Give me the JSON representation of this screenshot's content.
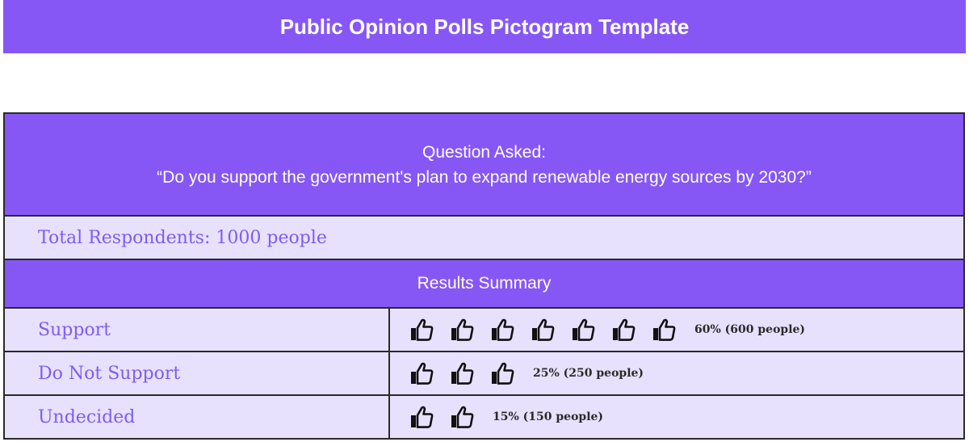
{
  "header": {
    "title": "Public Opinion Polls Pictogram Template"
  },
  "question": {
    "label": "Question Asked:",
    "text": "“Do you support the government's plan to expand renewable energy sources by 2030?”"
  },
  "respondents": {
    "text": "Total Respondents: 1000 people"
  },
  "summary": {
    "title": "Results Summary"
  },
  "results": [
    {
      "label": "Support",
      "icon_count": 7,
      "value": "60% (600 people)"
    },
    {
      "label": "Do Not Support",
      "icon_count": 3,
      "value": "25% (250 people)"
    },
    {
      "label": "Undecided",
      "icon_count": 2,
      "value": "15% (150 people)"
    }
  ],
  "icons": {
    "result_icon": "thumbs-up-icon"
  },
  "colors": {
    "accent": "#8657f5",
    "row_background": "#e7e1fd",
    "label_text": "#7f5cf0",
    "border": "#2a2a2a"
  }
}
